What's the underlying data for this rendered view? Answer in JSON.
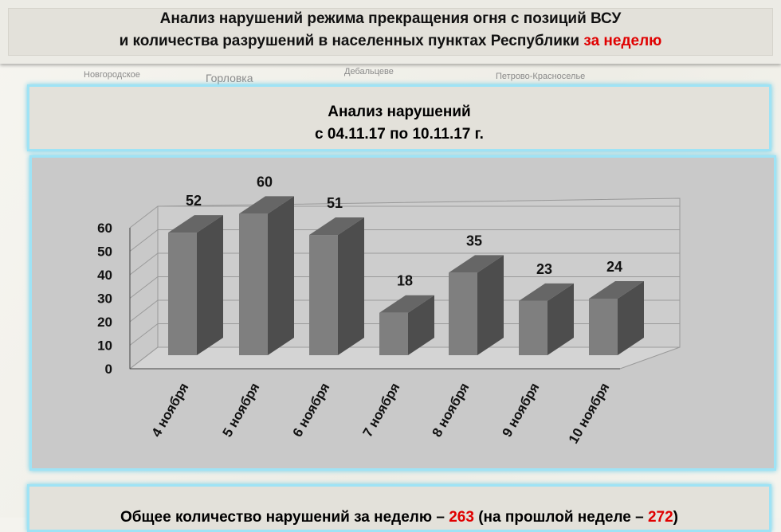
{
  "header": {
    "line1": "Анализ нарушений режима прекращения огня с позиций ВСУ",
    "line2_prefix": "и количества разрушений в населенных пунктах Республики ",
    "line2_highlight": "за неделю"
  },
  "map_labels": [
    "Новгородское",
    "Горловка",
    "Дебальцеве",
    "Петрово-Красноселье"
  ],
  "subtitle": {
    "line1": "Анализ нарушений",
    "line2": "с 04.11.17 по 10.11.17 г."
  },
  "chart_data": {
    "type": "bar",
    "style": "3d-column",
    "categories": [
      "4 ноября",
      "5 ноября",
      "6 ноября",
      "7 ноября",
      "8 ноября",
      "9 ноября",
      "10 ноября"
    ],
    "values": [
      52,
      60,
      51,
      18,
      35,
      23,
      24
    ],
    "ylim": [
      0,
      60
    ],
    "yticks": [
      0,
      10,
      20,
      30,
      40,
      50,
      60
    ],
    "grid": true,
    "colors": {
      "front": "#7f7f7f",
      "side": "#4d4d4d",
      "top": "#666666"
    }
  },
  "footer": {
    "prefix": "Общее количество нарушений за неделю – ",
    "total": "263",
    "middle": " (на прошлой неделе – ",
    "prev": "272",
    "suffix": ")"
  }
}
